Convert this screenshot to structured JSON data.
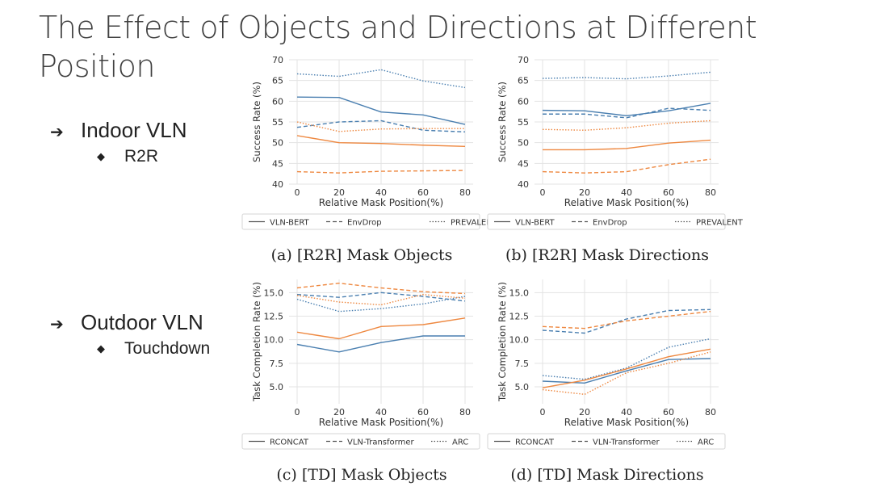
{
  "slide": {
    "title_line1": "The Effect of Objects and Directions at Different",
    "title_line2": "Position",
    "bullets": [
      {
        "label": "Indoor VLN",
        "sub": "R2R"
      },
      {
        "label": "Outdoor VLN",
        "sub": "Touchdown"
      }
    ],
    "arrow_glyph": "➔",
    "diamond_glyph": "◆"
  },
  "colors": {
    "blue": "#4a7fb0",
    "orange": "#ee8840",
    "grid": "#e3e3e3",
    "text": "#333333"
  },
  "chart_data": [
    {
      "type": "line",
      "caption": "(a) [R2R] Mask Objects",
      "xlabel": "Relative Mask Position(%)",
      "ylabel": "Success Rate (%)",
      "x": [
        0,
        20,
        40,
        60,
        80
      ],
      "xticks": [
        "0",
        "20",
        "40",
        "60",
        "80"
      ],
      "yticks": [
        "40",
        "45",
        "50",
        "55",
        "60",
        "65",
        "70"
      ],
      "ylim": [
        40,
        70
      ],
      "legend": [
        {
          "label": "VLN-BERT",
          "style": "solid"
        },
        {
          "label": "EnvDrop",
          "style": "dashed"
        },
        {
          "label": "PREVALENT",
          "style": "dotted"
        }
      ],
      "series": [
        {
          "name": "VLN-BERT",
          "color": "blue",
          "style": "solid",
          "values": [
            61,
            60.9,
            57.4,
            56.7,
            54.4
          ]
        },
        {
          "name": "EnvDrop",
          "color": "blue",
          "style": "dashed",
          "values": [
            53.7,
            55,
            55.3,
            53,
            52.6
          ]
        },
        {
          "name": "PREVALENT",
          "color": "blue",
          "style": "dotted",
          "values": [
            66.6,
            66,
            67.6,
            64.9,
            63.3
          ]
        },
        {
          "name": "VLN-BERT",
          "color": "orange",
          "style": "solid",
          "values": [
            51.7,
            50,
            49.8,
            49.4,
            49.1
          ]
        },
        {
          "name": "EnvDrop",
          "color": "orange",
          "style": "dashed",
          "values": [
            43,
            42.7,
            43.1,
            43.2,
            43.3
          ]
        },
        {
          "name": "PREVALENT",
          "color": "orange",
          "style": "dotted",
          "values": [
            55,
            52.7,
            53.3,
            53.4,
            53.4
          ]
        }
      ]
    },
    {
      "type": "line",
      "caption": "(b) [R2R] Mask Directions",
      "xlabel": "Relative Mask Position(%)",
      "ylabel": "Success Rate (%)",
      "x": [
        0,
        20,
        40,
        60,
        80
      ],
      "xticks": [
        "0",
        "20",
        "40",
        "60",
        "80"
      ],
      "yticks": [
        "40",
        "45",
        "50",
        "55",
        "60",
        "65",
        "70"
      ],
      "ylim": [
        40,
        70
      ],
      "legend": [
        {
          "label": "VLN-BERT",
          "style": "solid"
        },
        {
          "label": "EnvDrop",
          "style": "dashed"
        },
        {
          "label": "PREVALENT",
          "style": "dotted"
        }
      ],
      "series": [
        {
          "name": "VLN-BERT",
          "color": "blue",
          "style": "solid",
          "values": [
            57.8,
            57.7,
            56.5,
            57.7,
            59.5
          ]
        },
        {
          "name": "EnvDrop",
          "color": "blue",
          "style": "dashed",
          "values": [
            56.9,
            56.9,
            56,
            58.3,
            57.8
          ]
        },
        {
          "name": "PREVALENT",
          "color": "blue",
          "style": "dotted",
          "values": [
            65.5,
            65.7,
            65.4,
            66.1,
            67
          ]
        },
        {
          "name": "VLN-BERT",
          "color": "orange",
          "style": "solid",
          "values": [
            48.3,
            48.3,
            48.6,
            49.9,
            50.6
          ]
        },
        {
          "name": "EnvDrop",
          "color": "orange",
          "style": "dashed",
          "values": [
            43,
            42.7,
            43,
            44.7,
            46
          ]
        },
        {
          "name": "PREVALENT",
          "color": "orange",
          "style": "dotted",
          "values": [
            53.2,
            53,
            53.6,
            54.7,
            55.3
          ]
        }
      ]
    },
    {
      "type": "line",
      "caption": "(c) [TD] Mask Objects",
      "xlabel": "Relative Mask Position(%)",
      "ylabel": "Task Completion Rate (%)",
      "x": [
        0,
        20,
        40,
        60,
        80
      ],
      "xticks": [
        "0",
        "20",
        "40",
        "60",
        "80"
      ],
      "yticks": [
        "5.0",
        "7.5",
        "10.0",
        "12.5",
        "15.0"
      ],
      "ytick_values": [
        5,
        7.5,
        10,
        12.5,
        15
      ],
      "ylim": [
        3.2,
        16.4
      ],
      "legend": [
        {
          "label": "RCONCAT",
          "style": "solid"
        },
        {
          "label": "VLN-Transformer",
          "style": "dashed"
        },
        {
          "label": "ARC",
          "style": "dotted"
        }
      ],
      "series": [
        {
          "name": "RCONCAT",
          "color": "blue",
          "style": "solid",
          "values": [
            9.5,
            8.7,
            9.7,
            10.4,
            10.4
          ]
        },
        {
          "name": "VLN-Transformer",
          "color": "blue",
          "style": "dashed",
          "values": [
            14.8,
            14.5,
            15,
            14.6,
            14.1
          ]
        },
        {
          "name": "ARC",
          "color": "blue",
          "style": "dotted",
          "values": [
            14.3,
            13,
            13.3,
            13.8,
            14.6
          ]
        },
        {
          "name": "RCONCAT",
          "color": "orange",
          "style": "solid",
          "values": [
            10.8,
            10.1,
            11.4,
            11.6,
            12.3
          ]
        },
        {
          "name": "VLN-Transformer",
          "color": "orange",
          "style": "dashed",
          "values": [
            15.5,
            16,
            15.5,
            15.1,
            14.9
          ]
        },
        {
          "name": "ARC",
          "color": "orange",
          "style": "dotted",
          "values": [
            14.7,
            14,
            13.7,
            14.8,
            14.4
          ]
        }
      ]
    },
    {
      "type": "line",
      "caption": "(d) [TD] Mask Directions",
      "xlabel": "Relative Mask Position(%)",
      "ylabel": "Task Completion Rate (%)",
      "x": [
        0,
        20,
        40,
        60,
        80
      ],
      "xticks": [
        "0",
        "20",
        "40",
        "60",
        "80"
      ],
      "yticks": [
        "5.0",
        "7.5",
        "10.0",
        "12.5",
        "15.0"
      ],
      "ytick_values": [
        5,
        7.5,
        10,
        12.5,
        15
      ],
      "ylim": [
        3.2,
        16.4
      ],
      "legend": [
        {
          "label": "RCONCAT",
          "style": "solid"
        },
        {
          "label": "VLN-Transformer",
          "style": "dashed"
        },
        {
          "label": "ARC",
          "style": "dotted"
        }
      ],
      "series": [
        {
          "name": "RCONCAT",
          "color": "blue",
          "style": "solid",
          "values": [
            5.6,
            5.4,
            6.7,
            7.9,
            8
          ]
        },
        {
          "name": "VLN-Transformer",
          "color": "blue",
          "style": "dashed",
          "values": [
            11,
            10.7,
            12.2,
            13.1,
            13.2
          ]
        },
        {
          "name": "ARC",
          "color": "blue",
          "style": "dotted",
          "values": [
            6.2,
            5.8,
            7,
            9.2,
            10.1
          ]
        },
        {
          "name": "RCONCAT",
          "color": "orange",
          "style": "solid",
          "values": [
            4.9,
            5.7,
            6.9,
            8.2,
            9
          ]
        },
        {
          "name": "VLN-Transformer",
          "color": "orange",
          "style": "dashed",
          "values": [
            11.4,
            11.2,
            12,
            12.5,
            13
          ]
        },
        {
          "name": "ARC",
          "color": "orange",
          "style": "dotted",
          "values": [
            4.7,
            4.2,
            6.5,
            7.5,
            8.7
          ]
        }
      ]
    }
  ]
}
